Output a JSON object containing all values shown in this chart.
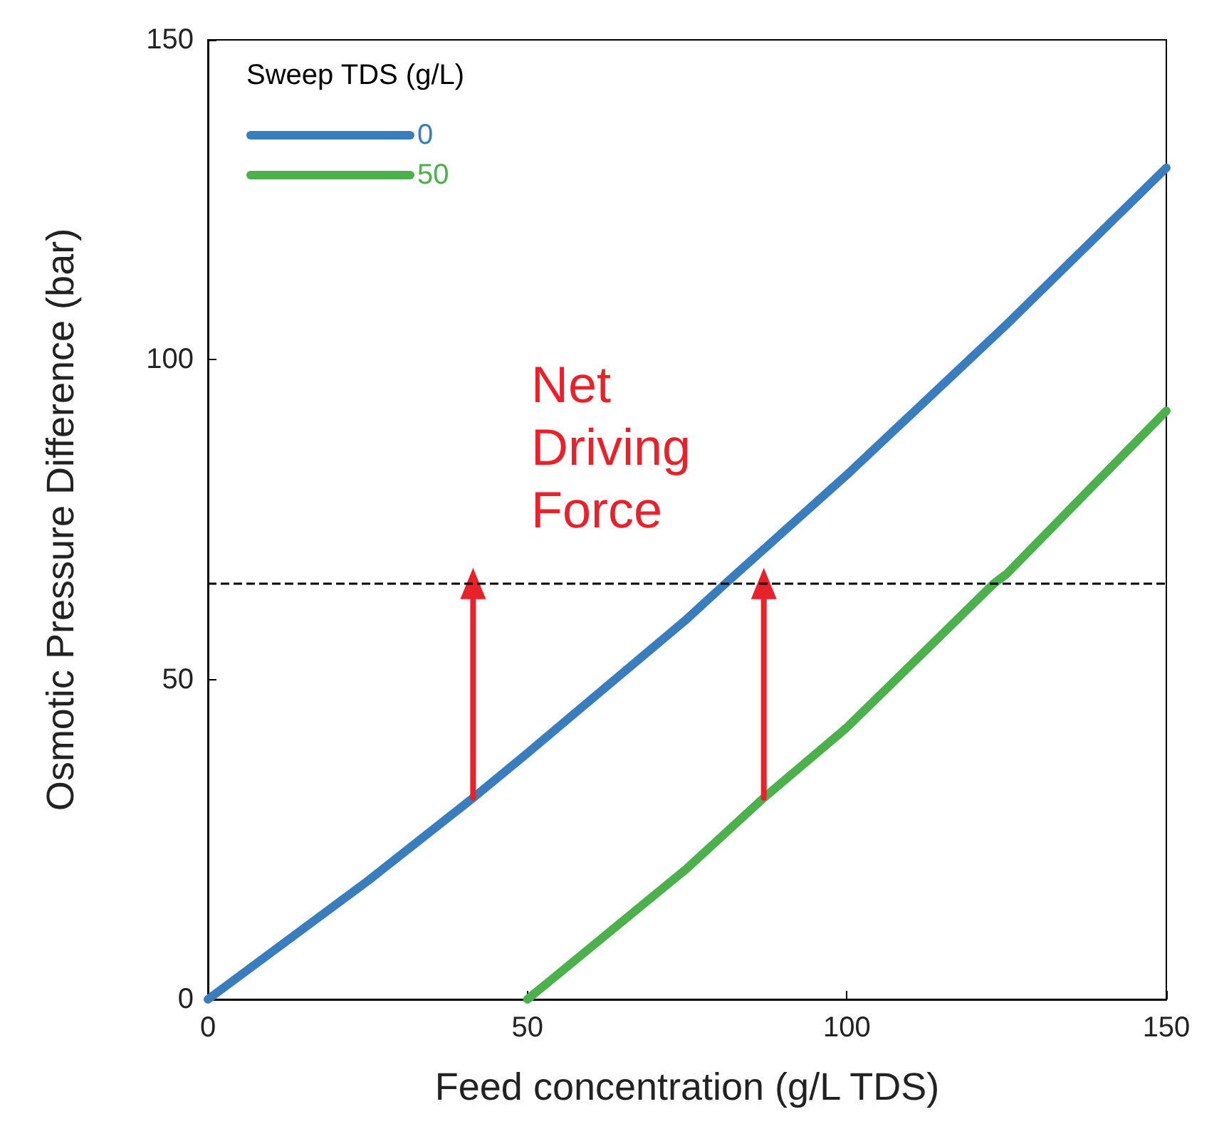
{
  "chart_data": {
    "type": "line",
    "xlabel": "Feed concentration (g/L TDS)",
    "ylabel": "Osmotic Pressure Difference (bar)",
    "legend_title": "Sweep TDS (g/L)",
    "legend": "top left",
    "marker": "none",
    "line_style": "solid",
    "grid": false,
    "xlim": [
      0,
      150
    ],
    "xticks": [
      0,
      50,
      100,
      150
    ],
    "ylim": [
      0,
      150
    ],
    "yticks": [
      0,
      50,
      100,
      150
    ],
    "series": [
      {
        "name": "0",
        "color": "#3a7dbf",
        "x": [
          0,
          25,
          41.5,
          50,
          75,
          81,
          100,
          125,
          150
        ],
        "values": [
          0,
          18.5,
          31.5,
          38.5,
          59.5,
          65,
          82,
          105.5,
          130
        ]
      },
      {
        "name": "50",
        "color": "#4cb04c",
        "x": [
          50,
          75,
          87,
          100,
          123,
          125,
          150
        ],
        "values": [
          0,
          20.5,
          31.5,
          42.5,
          65,
          66.5,
          92
        ]
      },
      {
        "color": "#e8212a",
        "marker": "triangle",
        "x": [
          41.5,
          41.5
        ],
        "values": [
          31.5,
          65
        ]
      },
      {
        "color": "#e8212a",
        "marker": "triangle",
        "x": [
          87,
          87
        ],
        "values": [
          31.5,
          65
        ]
      }
    ],
    "ref_lines": [
      {
        "axis": "y",
        "value": 65,
        "color": "#000000",
        "line_style": "dashed"
      }
    ],
    "annotations": [
      "Net Driving Force"
    ]
  }
}
